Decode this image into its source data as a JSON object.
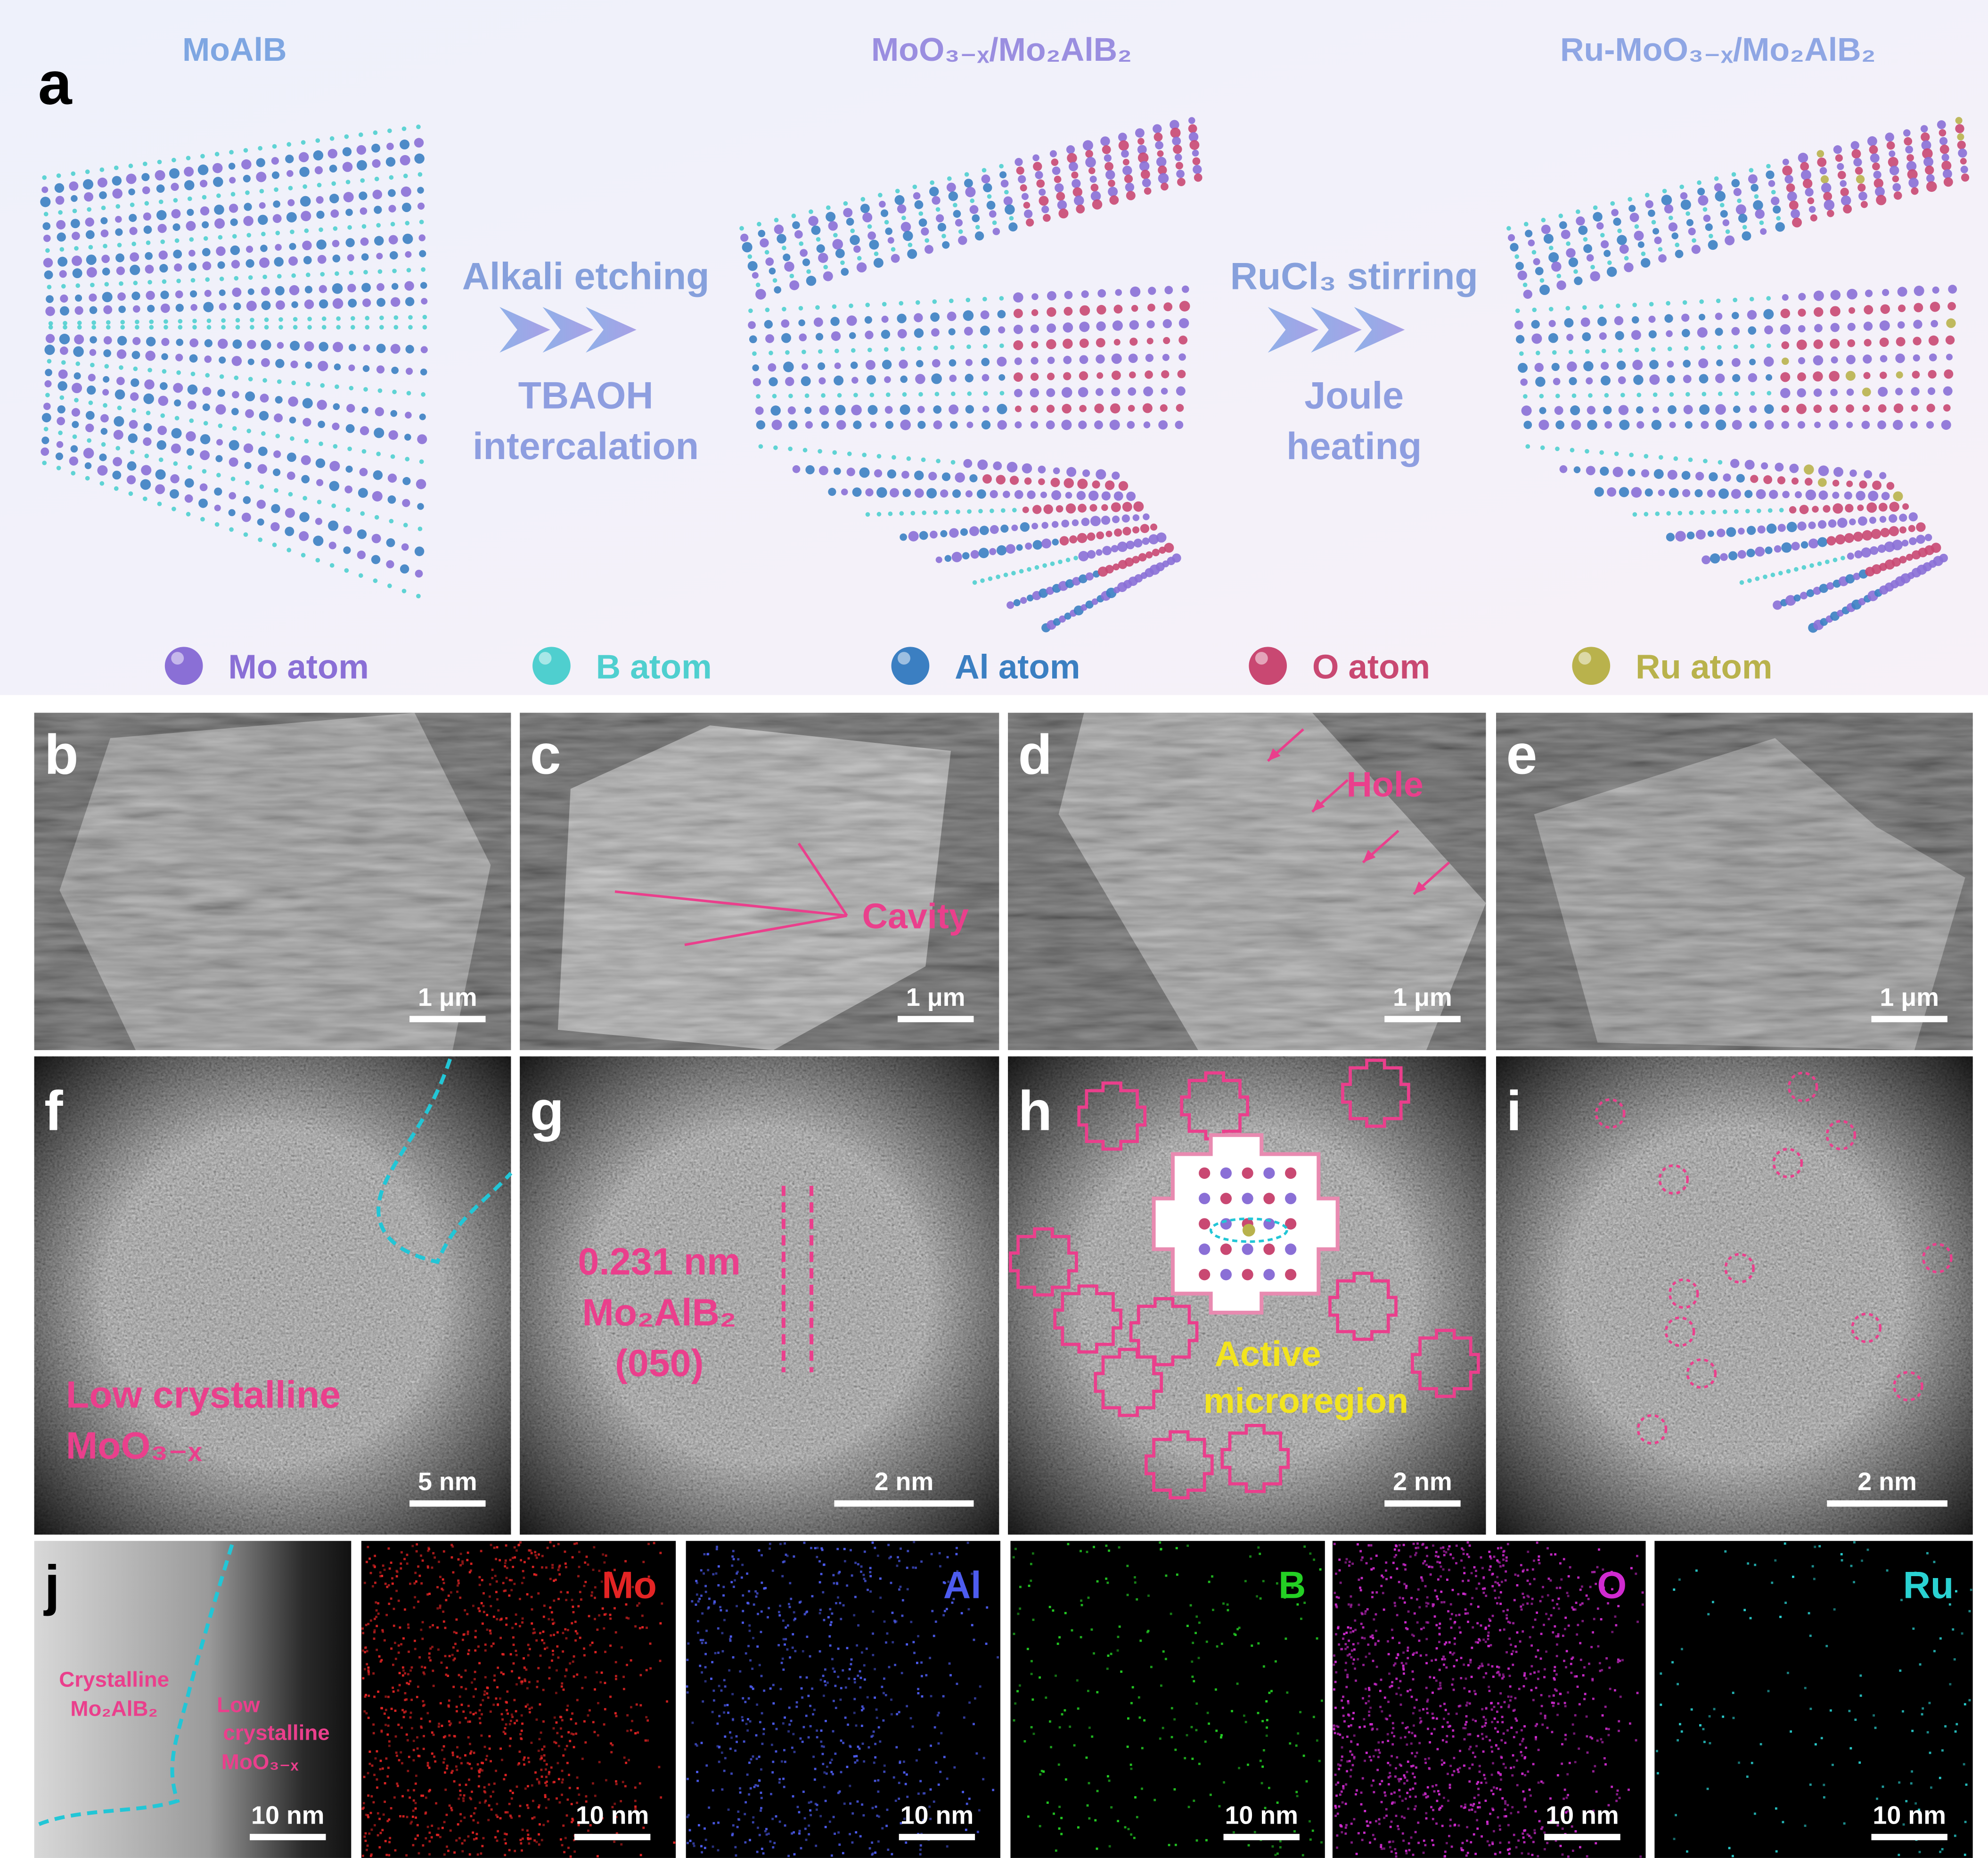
{
  "panel_a": {
    "label": "a",
    "materials": [
      "MoAlB",
      "MoO₃₋ₓ/Mo₂AlB₂",
      "Ru-MoO₃₋ₓ/Mo₂AlB₂"
    ],
    "steps": [
      {
        "above": "Alkali etching",
        "below": [
          "TBAOH",
          "intercalation"
        ]
      },
      {
        "above": "RuCl₃ stirring",
        "below": [
          "Joule",
          "heating"
        ]
      }
    ],
    "legend": [
      "Mo atom",
      "B atom",
      "Al atom",
      "O atom",
      "Ru atom"
    ]
  },
  "images": [
    {
      "label": "b",
      "scale_bar": "1 μm"
    },
    {
      "label": "c",
      "scale_bar": "1 μm",
      "annotation": [
        "Cavity"
      ]
    },
    {
      "label": "d",
      "scale_bar": "1 μm",
      "annotation": [
        "Hole"
      ]
    },
    {
      "label": "e",
      "scale_bar": "1 μm"
    },
    {
      "label": "f",
      "scale_bar": "5 nm",
      "annotation": [
        "Low crystalline",
        "MoO₃₋ₓ"
      ]
    },
    {
      "label": "g",
      "scale_bar": "2 nm",
      "annotation": [
        "0.231 nm",
        "Mo₂AlB₂",
        "(050)"
      ]
    },
    {
      "label": "h",
      "scale_bar": "2 nm",
      "annotation": [
        "Active",
        "microregion"
      ]
    },
    {
      "label": "i",
      "scale_bar": "2 nm"
    }
  ],
  "panel_j": {
    "label": "j",
    "scale_bar": "10 nm",
    "regions": [
      [
        "Crystalline",
        "Mo₂AlB₂"
      ],
      [
        "Low",
        "crystalline",
        "MoO₃₋ₓ"
      ]
    ],
    "maps": [
      {
        "element": "Mo",
        "scale_bar": "10 nm"
      },
      {
        "element": "Al",
        "scale_bar": "10 nm"
      },
      {
        "element": "B",
        "scale_bar": "10 nm"
      },
      {
        "element": "O",
        "scale_bar": "10 nm"
      },
      {
        "element": "Ru",
        "scale_bar": "10 nm"
      }
    ]
  }
}
